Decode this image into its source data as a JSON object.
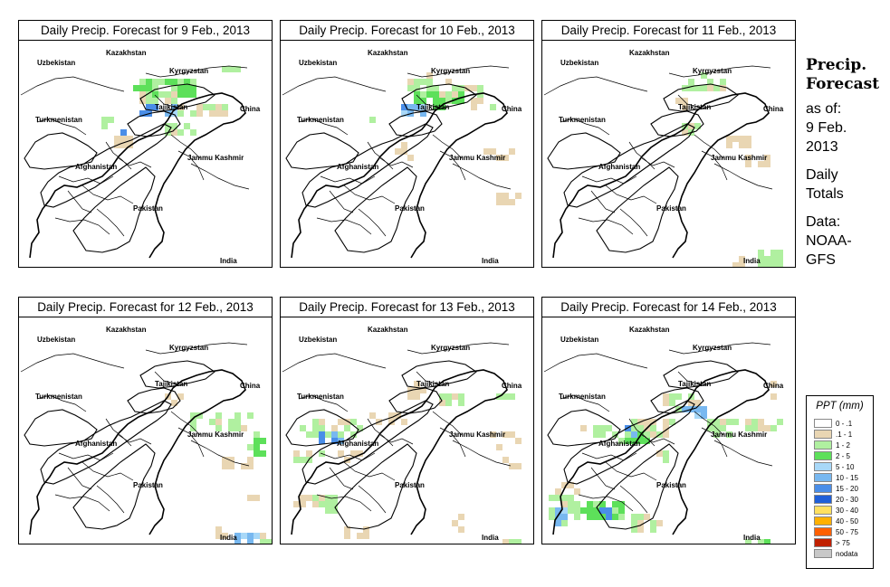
{
  "sidebar": {
    "title_line1": "Precip.",
    "title_line2": "Forecast",
    "asof_label": "as of:",
    "asof_date_line1": "9 Feb.",
    "asof_date_line2": "2013",
    "totals_line1": "Daily",
    "totals_line2": "Totals",
    "source_line1": "Data:",
    "source_line2": "NOAA-",
    "source_line3": "GFS"
  },
  "map_labels": {
    "kazakhstan": "Kazakhstan",
    "uzbekistan": "Uzbekistan",
    "kyrgyzstan": "Kyrgyzstan",
    "tajikistan": "Tajikistan",
    "turkmenistan": "Turkmenistan",
    "china": "China",
    "afghanistan": "Afghanistan",
    "jammu_kashmir": "Jammu Kashmir",
    "pakistan": "Pakistan",
    "india": "India"
  },
  "panels": [
    {
      "title": "Daily Precip. Forecast for  9 Feb., 2013"
    },
    {
      "title": "Daily Precip. Forecast for  10 Feb., 2013"
    },
    {
      "title": "Daily Precip. Forecast for  11 Feb., 2013"
    },
    {
      "title": "Daily Precip. Forecast for  12 Feb., 2013"
    },
    {
      "title": "Daily Precip. Forecast for  13 Feb., 2013"
    },
    {
      "title": "Daily Precip. Forecast for  14 Feb., 2013"
    }
  ],
  "legend": {
    "title": "PPT (mm)",
    "items": [
      {
        "label": "0 - .1",
        "color": "#ffffff"
      },
      {
        "label": ".1 - 1",
        "color": "#e9d6b3"
      },
      {
        "label": "1 - 2",
        "color": "#b0f0a0"
      },
      {
        "label": "2 - 5",
        "color": "#5de05a"
      },
      {
        "label": "5 - 10",
        "color": "#a8d8f8"
      },
      {
        "label": "10 - 15",
        "color": "#78b8f0"
      },
      {
        "label": "15 - 20",
        "color": "#4a8ee8"
      },
      {
        "label": "20 - 30",
        "color": "#1f5fd8"
      },
      {
        "label": "30 - 40",
        "color": "#ffe060"
      },
      {
        "label": "40 - 50",
        "color": "#ffb000"
      },
      {
        "label": "50 - 75",
        "color": "#ff6000"
      },
      {
        "label": "> 75",
        "color": "#c02000"
      },
      {
        "label": "nodata",
        "color": "#c8c8c8"
      }
    ]
  }
}
